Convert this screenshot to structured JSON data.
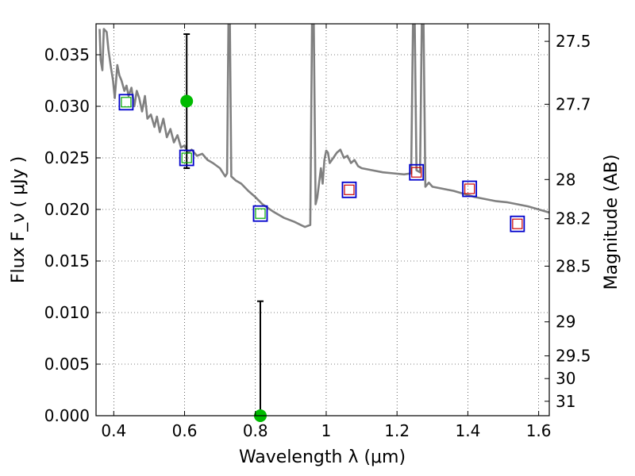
{
  "chart_data": {
    "type": "line",
    "xlabel": "Wavelength  λ (μm)",
    "ylabel": "Flux  F_ν  ( μJy )",
    "ylabel_right": "Magnitude (AB)",
    "xlim": [
      0.35,
      1.63
    ],
    "ylim": [
      0.0,
      0.038
    ],
    "grid": true,
    "x_ticks": [
      0.4,
      0.6,
      0.8,
      1.0,
      1.2,
      1.4,
      1.6
    ],
    "x_tick_labels": [
      "0.4",
      "0.6",
      "0.8",
      "1",
      "1.2",
      "1.4",
      "1.6"
    ],
    "y_ticks": [
      0.0,
      0.005,
      0.01,
      0.015,
      0.02,
      0.025,
      0.03,
      0.035
    ],
    "y_tick_labels": [
      "0.000",
      "0.005",
      "0.010",
      "0.015",
      "0.020",
      "0.025",
      "0.030",
      "0.035"
    ],
    "right_ticks": [
      {
        "label": "27.5",
        "flux": 0.0363
      },
      {
        "label": "27.7",
        "flux": 0.0302
      },
      {
        "label": "28",
        "flux": 0.0229
      },
      {
        "label": "28.2",
        "flux": 0.0191
      },
      {
        "label": "28.5",
        "flux": 0.0145
      },
      {
        "label": "29",
        "flux": 0.0091
      },
      {
        "label": "29.5",
        "flux": 0.0058
      },
      {
        "label": "30",
        "flux": 0.0036
      },
      {
        "label": "31",
        "flux": 0.0014
      }
    ],
    "sed_model": {
      "color": "#808080",
      "points": [
        [
          0.36,
          0.0375
        ],
        [
          0.363,
          0.0345
        ],
        [
          0.368,
          0.0335
        ],
        [
          0.372,
          0.0375
        ],
        [
          0.38,
          0.0372
        ],
        [
          0.385,
          0.0355
        ],
        [
          0.392,
          0.0338
        ],
        [
          0.398,
          0.0325
        ],
        [
          0.403,
          0.0308
        ],
        [
          0.41,
          0.034
        ],
        [
          0.416,
          0.033
        ],
        [
          0.422,
          0.0325
        ],
        [
          0.43,
          0.0315
        ],
        [
          0.436,
          0.032
        ],
        [
          0.442,
          0.031
        ],
        [
          0.45,
          0.0318
        ],
        [
          0.458,
          0.03
        ],
        [
          0.465,
          0.0315
        ],
        [
          0.472,
          0.0308
        ],
        [
          0.48,
          0.0295
        ],
        [
          0.488,
          0.031
        ],
        [
          0.495,
          0.0288
        ],
        [
          0.505,
          0.0292
        ],
        [
          0.515,
          0.028
        ],
        [
          0.522,
          0.029
        ],
        [
          0.53,
          0.0275
        ],
        [
          0.54,
          0.0288
        ],
        [
          0.55,
          0.027
        ],
        [
          0.56,
          0.0278
        ],
        [
          0.57,
          0.0265
        ],
        [
          0.58,
          0.0272
        ],
        [
          0.59,
          0.026
        ],
        [
          0.6,
          0.0262
        ],
        [
          0.61,
          0.0255
        ],
        [
          0.62,
          0.0258
        ],
        [
          0.635,
          0.0252
        ],
        [
          0.65,
          0.0254
        ],
        [
          0.665,
          0.0248
        ],
        [
          0.68,
          0.0245
        ],
        [
          0.7,
          0.024
        ],
        [
          0.715,
          0.0232
        ],
        [
          0.72,
          0.0235
        ],
        [
          0.724,
          0.038
        ],
        [
          0.728,
          0.038
        ],
        [
          0.732,
          0.0232
        ],
        [
          0.745,
          0.0228
        ],
        [
          0.76,
          0.0225
        ],
        [
          0.78,
          0.0218
        ],
        [
          0.8,
          0.0212
        ],
        [
          0.82,
          0.0205
        ],
        [
          0.85,
          0.0198
        ],
        [
          0.88,
          0.0192
        ],
        [
          0.91,
          0.0188
        ],
        [
          0.94,
          0.0183
        ],
        [
          0.955,
          0.0185
        ],
        [
          0.96,
          0.038
        ],
        [
          0.965,
          0.038
        ],
        [
          0.97,
          0.0205
        ],
        [
          0.975,
          0.0212
        ],
        [
          0.985,
          0.024
        ],
        [
          0.99,
          0.0225
        ],
        [
          0.995,
          0.0248
        ],
        [
          1.0,
          0.0257
        ],
        [
          1.005,
          0.0255
        ],
        [
          1.01,
          0.0245
        ],
        [
          1.02,
          0.025
        ],
        [
          1.03,
          0.0255
        ],
        [
          1.04,
          0.0258
        ],
        [
          1.05,
          0.025
        ],
        [
          1.06,
          0.0252
        ],
        [
          1.07,
          0.0245
        ],
        [
          1.08,
          0.0248
        ],
        [
          1.09,
          0.0242
        ],
        [
          1.1,
          0.024
        ],
        [
          1.13,
          0.0238
        ],
        [
          1.16,
          0.0236
        ],
        [
          1.19,
          0.0235
        ],
        [
          1.22,
          0.0234
        ],
        [
          1.24,
          0.0235
        ],
        [
          1.245,
          0.038
        ],
        [
          1.25,
          0.038
        ],
        [
          1.255,
          0.0238
        ],
        [
          1.265,
          0.0236
        ],
        [
          1.27,
          0.038
        ],
        [
          1.275,
          0.038
        ],
        [
          1.28,
          0.0222
        ],
        [
          1.29,
          0.0226
        ],
        [
          1.3,
          0.0222
        ],
        [
          1.33,
          0.022
        ],
        [
          1.36,
          0.0218
        ],
        [
          1.39,
          0.0215
        ],
        [
          1.42,
          0.0212
        ],
        [
          1.45,
          0.021
        ],
        [
          1.48,
          0.0208
        ],
        [
          1.51,
          0.0207
        ],
        [
          1.54,
          0.0205
        ],
        [
          1.57,
          0.0203
        ],
        [
          1.6,
          0.02
        ],
        [
          1.63,
          0.0197
        ]
      ]
    },
    "observed_boxes": {
      "color": "#0000cc",
      "points": [
        {
          "x": 0.435,
          "y": 0.0304
        },
        {
          "x": 0.606,
          "y": 0.025
        },
        {
          "x": 0.814,
          "y": 0.0196
        },
        {
          "x": 1.065,
          "y": 0.0219
        },
        {
          "x": 1.255,
          "y": 0.0236
        },
        {
          "x": 1.405,
          "y": 0.022
        },
        {
          "x": 1.54,
          "y": 0.0186
        }
      ]
    },
    "model_boxes": {
      "colors": [
        "#00aa00",
        "#00aa00",
        "#00aa00",
        "#cc0000",
        "#cc0000",
        "#cc0000",
        "#cc0000"
      ],
      "points": [
        {
          "x": 0.435,
          "y": 0.0304
        },
        {
          "x": 0.606,
          "y": 0.025
        },
        {
          "x": 0.814,
          "y": 0.0196
        },
        {
          "x": 1.065,
          "y": 0.0219
        },
        {
          "x": 1.255,
          "y": 0.0236
        },
        {
          "x": 1.405,
          "y": 0.022
        },
        {
          "x": 1.54,
          "y": 0.0186
        }
      ]
    },
    "detections": {
      "color": "#00bb00",
      "points": [
        {
          "x": 0.606,
          "y": 0.0305,
          "err_low": 0.024,
          "err_high": 0.037
        },
        {
          "x": 0.814,
          "y": 0.0,
          "err_low": 0.0,
          "err_high": 0.0111
        }
      ]
    }
  }
}
